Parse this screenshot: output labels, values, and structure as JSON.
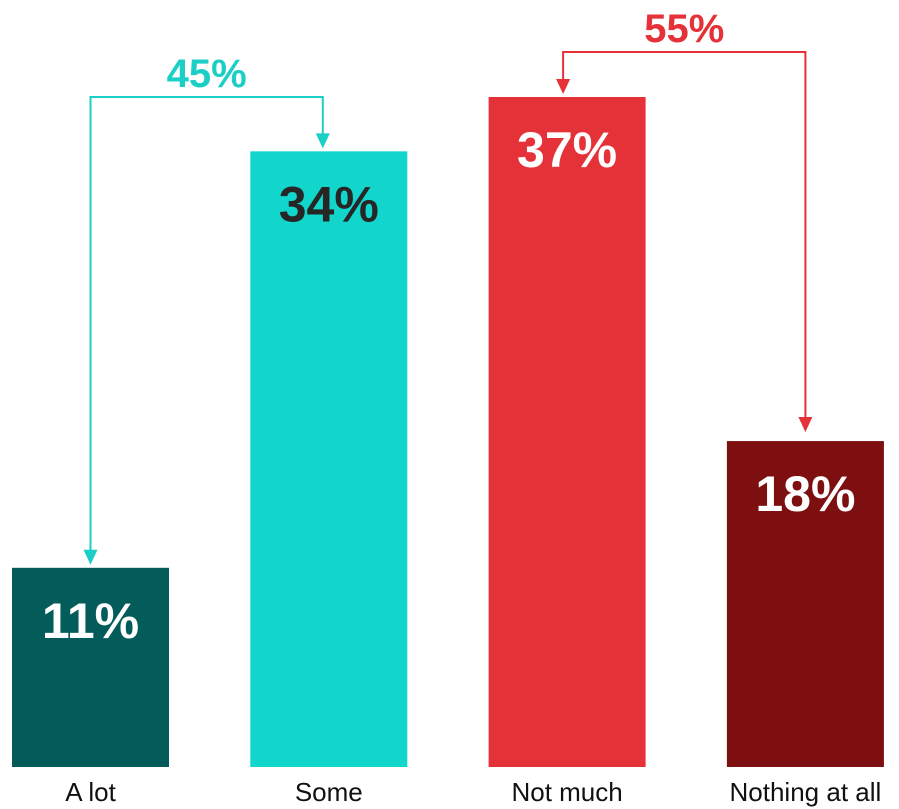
{
  "chart_data": {
    "type": "bar",
    "categories": [
      "A lot",
      "Some",
      "Not much",
      "Nothing at all"
    ],
    "values": [
      11,
      34,
      37,
      18
    ],
    "value_labels": [
      "11%",
      "34%",
      "37%",
      "18%"
    ],
    "bar_colors": [
      "#045C5A",
      "#12D6CB",
      "#E53238",
      "#7E0F11"
    ],
    "value_label_colors": [
      "#ffffff",
      "#262626",
      "#ffffff",
      "#ffffff"
    ],
    "groups": [
      {
        "label": "45%",
        "value": 45,
        "color": "#1CCFC6",
        "from_category": "Some",
        "to_category": "A lot"
      },
      {
        "label": "55%",
        "value": 55,
        "color": "#E53238",
        "from_category": "Not much",
        "to_category": "Nothing at all"
      }
    ],
    "title": "",
    "xlabel": "",
    "ylabel": "",
    "ylim": [
      0,
      37
    ],
    "grid": false,
    "legend": "none"
  }
}
